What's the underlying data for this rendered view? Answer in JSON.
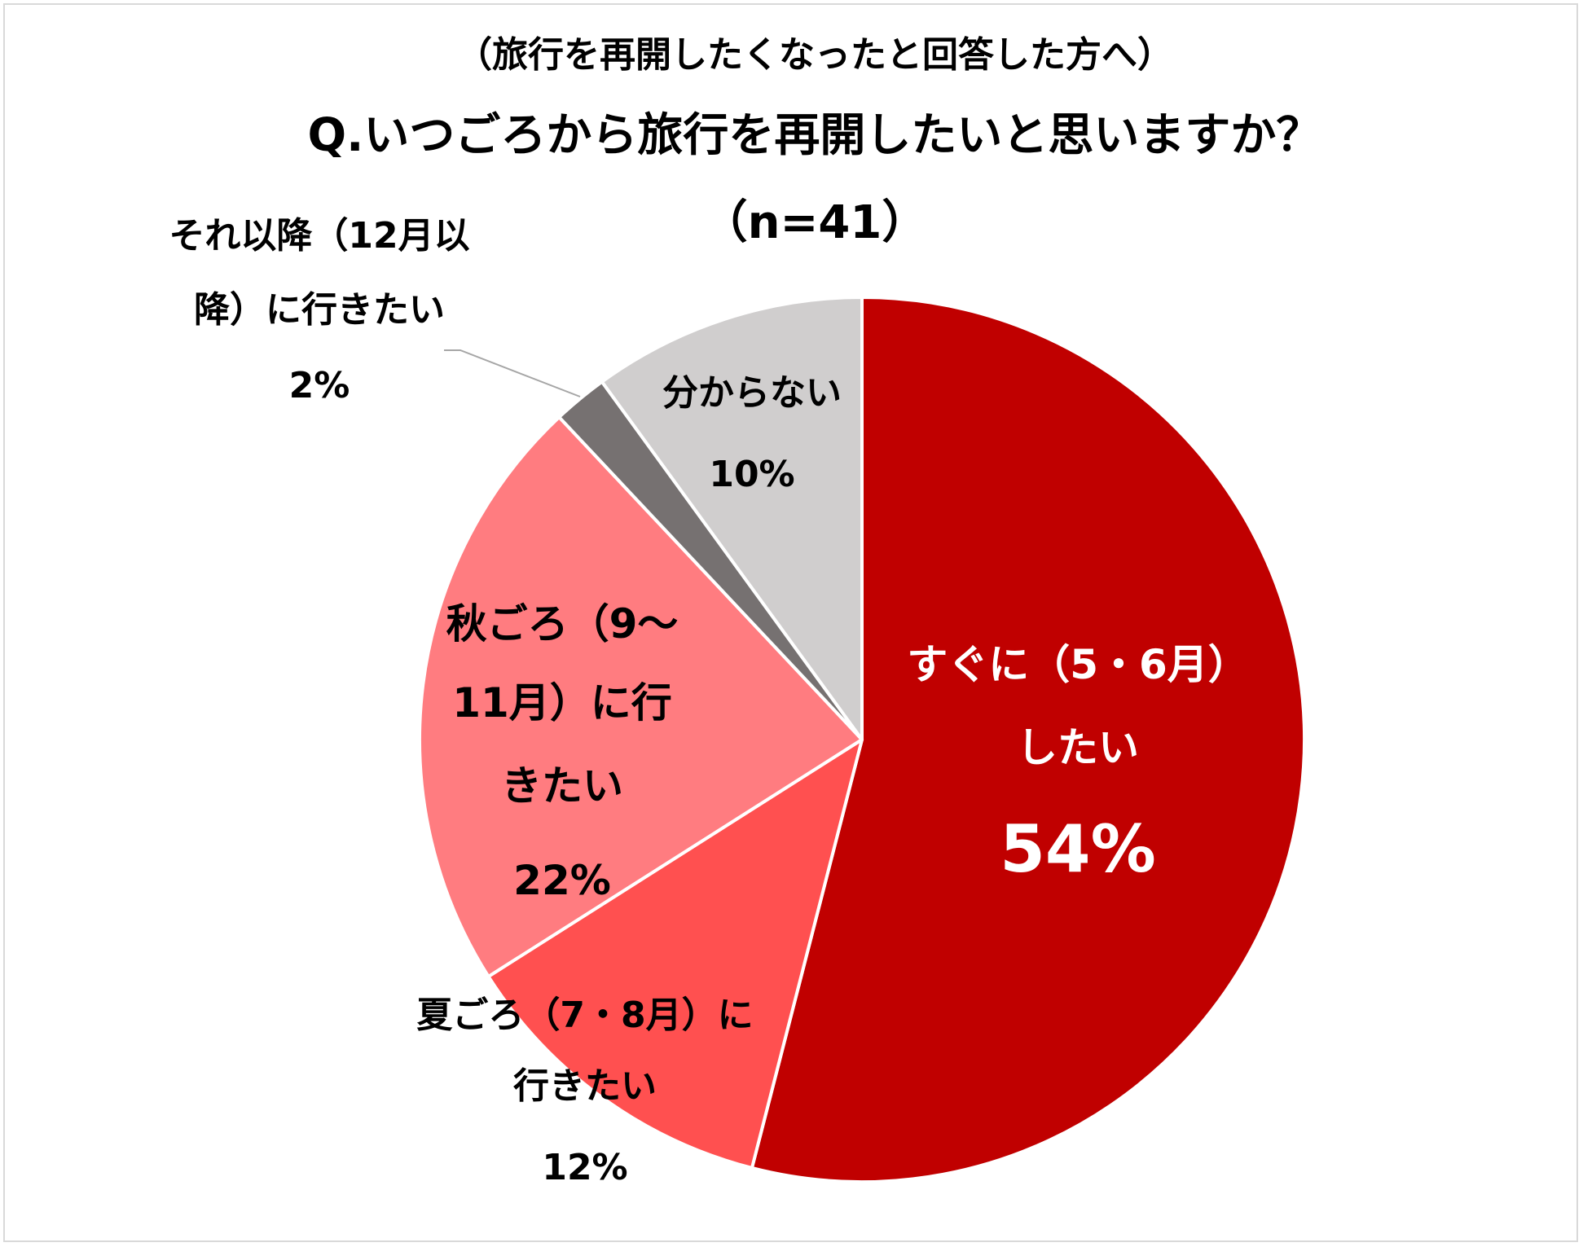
{
  "chart_data": {
    "type": "pie",
    "title_lines": [
      "（旅行を再開したくなったと回答した方へ）",
      "Q.いつごろから旅行を再開したいと思いますか？",
      "（n=41）"
    ],
    "slices": [
      {
        "label_lines": [
          "すぐに（5・6月）",
          "したい"
        ],
        "percent_label": "54%",
        "value": 54,
        "color": "#c00000",
        "text_color": "#ffffff"
      },
      {
        "label_lines": [
          "夏ごろ（7・8月）に",
          "行きたい"
        ],
        "percent_label": "12%",
        "value": 12,
        "color": "#ff5050",
        "text_color": "#000000"
      },
      {
        "label_lines": [
          "秋ごろ（9～",
          "11月）に行",
          "きたい"
        ],
        "percent_label": "22%",
        "value": 22,
        "color": "#ff7c80",
        "text_color": "#000000"
      },
      {
        "label_lines": [
          "それ以降（12月以",
          "降）に行きたい"
        ],
        "percent_label": "2%",
        "value": 2,
        "color": "#767171",
        "text_color": "#000000"
      },
      {
        "label_lines": [
          "分からない"
        ],
        "percent_label": "10%",
        "value": 10,
        "color": "#d0cece",
        "text_color": "#000000"
      }
    ]
  }
}
